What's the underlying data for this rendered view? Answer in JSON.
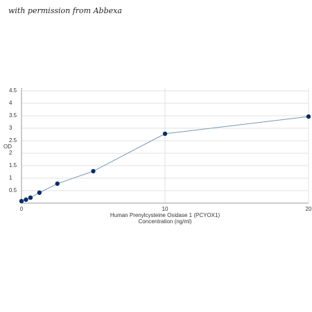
{
  "watermark": "with permission from Abbexa",
  "chart_data": {
    "type": "scatter-line",
    "x_label": [
      "Human Prenylcysteine Oxidase 1 (PCYOX1)",
      "Concentration (ng/ml)"
    ],
    "y_label": "OD",
    "x": [
      0,
      0.3125,
      0.625,
      1.25,
      2.5,
      5,
      10,
      20
    ],
    "values": [
      0.08,
      0.14,
      0.22,
      0.42,
      0.78,
      1.28,
      2.78,
      3.47
    ],
    "color": "#0b2d6b",
    "line_color": "#7896b4",
    "xlim": [
      0,
      20
    ],
    "ylim": [
      0,
      4.5
    ],
    "xticks": [
      0,
      10,
      20
    ],
    "yticks": [
      0.5,
      1,
      1.5,
      2,
      2.5,
      3,
      3.5,
      4,
      4.5
    ],
    "grid": true
  }
}
